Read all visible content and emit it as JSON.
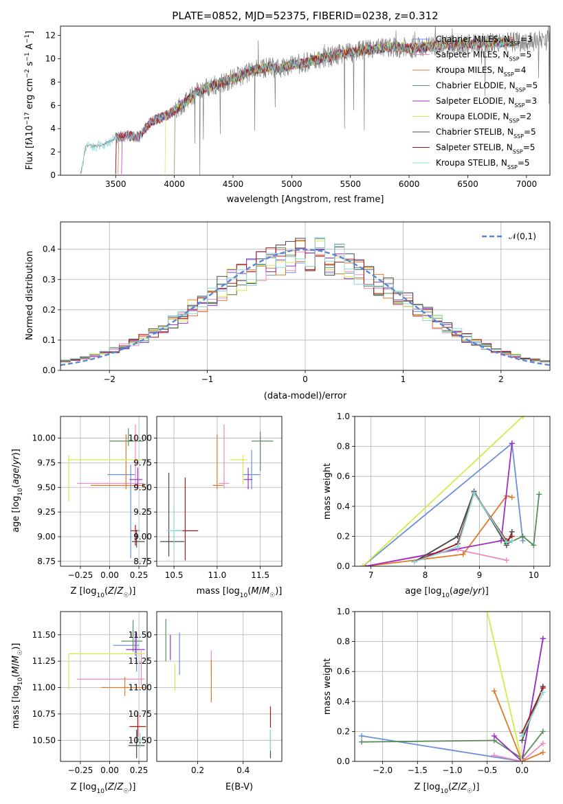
{
  "figure": {
    "title": "PLATE=0852, MJD=52375, FIBERID=0238, z=0.312"
  },
  "models": [
    {
      "name": "Chabrier MILES",
      "nssp": "3",
      "color": "#6b8fd6"
    },
    {
      "name": "Salpeter MILES",
      "nssp": "5",
      "color": "#ee89c1"
    },
    {
      "name": "Kroupa MILES",
      "nssp": "4",
      "color": "#e0782a"
    },
    {
      "name": "Chabrier ELODIE",
      "nssp": "5",
      "color": "#5b8c5e"
    },
    {
      "name": "Salpeter ELODIE",
      "nssp": "3",
      "color": "#9b30c0"
    },
    {
      "name": "Kroupa ELODIE",
      "nssp": "2",
      "color": "#d4ea4a"
    },
    {
      "name": "Chabrier STELIB",
      "nssp": "5",
      "color": "#4a4a4a"
    },
    {
      "name": "Salpeter STELIB",
      "nssp": "5",
      "color": "#a51818"
    },
    {
      "name": "Kroupa STELIB",
      "nssp": "5",
      "color": "#88d6d6"
    }
  ],
  "chart_data": [
    {
      "id": "spectrum",
      "type": "line",
      "xlabel": "wavelength [Angstrom, rest frame]",
      "ylabel": "Flux [f_λ 10^-17 erg cm^-2 s^-1 A^-1]",
      "xlim": [
        3030,
        7200
      ],
      "ylim": [
        0,
        12.8
      ],
      "xticks": [
        3500,
        4000,
        4500,
        5000,
        5500,
        6000,
        6500,
        7000
      ],
      "yticks": [
        0,
        2,
        4,
        6,
        8,
        10,
        12
      ],
      "grid": false,
      "legend_position": "right",
      "observed_color": "#7f7f7f",
      "observed_anchor_x": [
        3200,
        3250,
        3300,
        3400,
        3500,
        3600,
        3700,
        3800,
        3950,
        4000,
        4100,
        4200,
        4300,
        4400,
        4500,
        4600,
        4700,
        4800,
        4900,
        5000,
        5100,
        5200,
        5300,
        5400,
        5500,
        5600,
        5700,
        5800,
        5900,
        6000,
        6200,
        6400,
        6600,
        6800,
        7000,
        7200
      ],
      "observed_anchor_y": [
        0.05,
        2.6,
        2.5,
        2.6,
        3.2,
        3.4,
        3.3,
        4.6,
        5.2,
        5.6,
        6.3,
        7.2,
        7.6,
        7.9,
        8.3,
        8.7,
        9.1,
        9.3,
        9.2,
        9.5,
        9.6,
        9.9,
        10.1,
        10.4,
        10.5,
        10.7,
        10.8,
        11.0,
        11.0,
        10.9,
        11.1,
        11.2,
        11.3,
        11.4,
        11.5,
        11.6
      ]
    },
    {
      "id": "residuals",
      "type": "histogram",
      "xlabel": "(data-model)/error",
      "ylabel": "Normed distribution",
      "xlim": [
        -2.5,
        2.5
      ],
      "ylim": [
        0,
        0.49
      ],
      "xticks": [
        -2,
        -1,
        0,
        1,
        2
      ],
      "yticks": [
        0.0,
        0.1,
        0.2,
        0.3,
        0.4
      ],
      "grid": true,
      "reference_curve": {
        "label": "𝒩(0,1)",
        "mean": 0,
        "sigma": 1,
        "color": "#5a86d6"
      },
      "legend_position": "top-right",
      "bins": 50
    },
    {
      "id": "age_vs_Z",
      "type": "errorbar",
      "xlabel": "Z [log10(Z/Z☉)]",
      "ylabel": "age [log10(age/yr)]",
      "xlim": [
        -0.42,
        0.32
      ],
      "ylim": [
        8.7,
        10.22
      ],
      "xticks": [
        -0.25,
        0.0,
        0.25
      ],
      "yticks": [
        8.75,
        9.0,
        9.25,
        9.5,
        9.75,
        10.0
      ],
      "grid": true,
      "points": [
        {
          "model": 0,
          "x": 0.18,
          "xerr": [
            0.2,
            0.04
          ],
          "y": 9.63,
          "yerr": [
            0.85,
            0.1
          ]
        },
        {
          "model": 1,
          "x": 0.22,
          "xerr": [
            0.5,
            0.07
          ],
          "y": 9.54,
          "yerr": [
            0.05,
            0.6
          ]
        },
        {
          "model": 2,
          "x": 0.14,
          "xerr": [
            0.3,
            0.16
          ],
          "y": 9.52,
          "yerr": [
            0.04,
            0.52
          ]
        },
        {
          "model": 3,
          "x": 0.16,
          "xerr": [
            0.16,
            0.13
          ],
          "y": 9.97,
          "yerr": [
            0.05,
            0.13
          ]
        },
        {
          "model": 4,
          "x": 0.24,
          "xerr": [
            0.07,
            0.04
          ],
          "y": 9.58,
          "yerr": [
            0.07,
            0.12
          ]
        },
        {
          "model": 5,
          "x": -0.35,
          "xerr": [
            0.0,
            0.65
          ],
          "y": 9.78,
          "yerr": [
            0.42,
            0.05
          ]
        },
        {
          "model": 6,
          "x": 0.23,
          "xerr": [
            0.04,
            0.07
          ],
          "y": 8.95,
          "yerr": [
            0.06,
            0.12
          ]
        },
        {
          "model": 7,
          "x": 0.22,
          "xerr": [
            0.04,
            0.04
          ],
          "y": 9.06,
          "yerr": [
            0.15,
            0.06
          ]
        },
        {
          "model": 8,
          "x": 0.25,
          "xerr": [
            0.01,
            0.01
          ],
          "y": 9.06,
          "yerr": [
            0.02,
            0.02
          ]
        }
      ]
    },
    {
      "id": "age_vs_mass",
      "type": "errorbar",
      "xlabel": "mass [log10(M/M☉)]",
      "ylabel": "",
      "xlim": [
        10.3,
        11.75
      ],
      "ylim": [
        8.7,
        10.22
      ],
      "xticks": [
        10.5,
        11.0,
        11.5
      ],
      "yticks": [
        8.75,
        9.0,
        9.25,
        9.5,
        9.75,
        10.0
      ],
      "grid": true,
      "points": [
        {
          "model": 0,
          "x": 11.4,
          "xerr": [
            0.1,
            0.1
          ],
          "y": 9.63,
          "yerr": [
            0.15,
            0.25
          ]
        },
        {
          "model": 1,
          "x": 11.08,
          "xerr": [
            0.06,
            0.06
          ],
          "y": 9.54,
          "yerr": [
            0.05,
            0.6
          ]
        },
        {
          "model": 2,
          "x": 11.0,
          "xerr": [
            0.05,
            0.07
          ],
          "y": 9.52,
          "yerr": [
            0.04,
            0.52
          ]
        },
        {
          "model": 3,
          "x": 11.5,
          "xerr": [
            0.1,
            0.15
          ],
          "y": 9.97,
          "yerr": [
            0.3,
            0.1
          ]
        },
        {
          "model": 4,
          "x": 11.36,
          "xerr": [
            0.05,
            0.05
          ],
          "y": 9.58,
          "yerr": [
            0.1,
            0.12
          ]
        },
        {
          "model": 5,
          "x": 11.3,
          "xerr": [
            0.15,
            0.05
          ],
          "y": 9.78,
          "yerr": [
            0.25,
            0.05
          ]
        },
        {
          "model": 6,
          "x": 10.44,
          "xerr": [
            0.1,
            0.18
          ],
          "y": 8.95,
          "yerr": [
            0.15,
            0.7
          ]
        },
        {
          "model": 7,
          "x": 10.63,
          "xerr": [
            0.12,
            0.15
          ],
          "y": 9.06,
          "yerr": [
            0.3,
            0.54
          ]
        },
        {
          "model": 8,
          "x": 10.5,
          "xerr": [
            0.08,
            0.1
          ],
          "y": 9.06,
          "yerr": [
            0.2,
            0.25
          ]
        }
      ]
    },
    {
      "id": "mass_weight_vs_age",
      "type": "line",
      "xlabel": "age [log10(age/yr)]",
      "ylabel": "mass weight",
      "xlim": [
        6.7,
        10.3
      ],
      "ylim": [
        0.0,
        1.0
      ],
      "xticks": [
        7,
        8,
        9,
        10
      ],
      "yticks": [
        0.0,
        0.2,
        0.4,
        0.6,
        0.8,
        1.0
      ],
      "grid": true,
      "series": [
        {
          "model": 0,
          "x": [
            6.85,
            9.6,
            9.8
          ],
          "y": [
            0.0,
            0.82,
            0.17
          ]
        },
        {
          "model": 1,
          "x": [
            6.9,
            8.6,
            9.5
          ],
          "y": [
            0.0,
            0.11,
            0.04
          ]
        },
        {
          "model": 2,
          "x": [
            6.9,
            8.7,
            9.5,
            9.6
          ],
          "y": [
            0.0,
            0.08,
            0.47,
            0.46
          ]
        },
        {
          "model": 3,
          "x": [
            7.8,
            8.6,
            8.9,
            9.5,
            9.8,
            10.0,
            10.1
          ],
          "y": [
            0.03,
            0.2,
            0.49,
            0.15,
            0.2,
            0.14,
            0.48
          ]
        },
        {
          "model": 4,
          "x": [
            6.9,
            9.4,
            9.6
          ],
          "y": [
            0.0,
            0.17,
            0.82
          ]
        },
        {
          "model": 5,
          "x": [
            6.85,
            9.8
          ],
          "y": [
            0.0,
            1.0
          ]
        },
        {
          "model": 6,
          "x": [
            7.8,
            8.6,
            8.9,
            9.5,
            9.6
          ],
          "y": [
            0.03,
            0.2,
            0.5,
            0.14,
            0.23
          ]
        },
        {
          "model": 7,
          "x": [
            7.8,
            8.6,
            8.9,
            9.5,
            9.6
          ],
          "y": [
            0.03,
            0.15,
            0.49,
            0.17,
            0.2
          ]
        },
        {
          "model": 8,
          "x": [
            7.8,
            8.6,
            8.9,
            9.5,
            9.6
          ],
          "y": [
            0.03,
            0.13,
            0.49,
            0.16,
            0.17
          ]
        }
      ]
    },
    {
      "id": "mass_vs_Z",
      "type": "errorbar",
      "xlabel": "Z [log10(Z/Z☉)]",
      "ylabel": "mass [log10(M/M☉)]",
      "xlim": [
        -0.42,
        0.32
      ],
      "ylim": [
        10.3,
        11.72
      ],
      "xticks": [
        -0.25,
        0.0,
        0.25
      ],
      "yticks": [
        10.5,
        10.75,
        11.0,
        11.25,
        11.5
      ],
      "grid": true,
      "points": [
        {
          "model": 0,
          "x": 0.23,
          "xerr": [
            0.2,
            0.02
          ],
          "y": 11.4,
          "yerr": [
            0.25,
            0.12
          ]
        },
        {
          "model": 1,
          "x": 0.27,
          "xerr": [
            0.55,
            0.03
          ],
          "y": 11.08,
          "yerr": [
            0.06,
            0.27
          ]
        },
        {
          "model": 2,
          "x": 0.13,
          "xerr": [
            0.2,
            0.17
          ],
          "y": 11.0,
          "yerr": [
            0.08,
            0.1
          ]
        },
        {
          "model": 3,
          "x": 0.2,
          "xerr": [
            0.1,
            0.08
          ],
          "y": 11.44,
          "yerr": [
            0.1,
            0.2
          ]
        },
        {
          "model": 4,
          "x": 0.22,
          "xerr": [
            0.08,
            0.08
          ],
          "y": 11.36,
          "yerr": [
            0.06,
            0.16
          ]
        },
        {
          "model": 5,
          "x": -0.35,
          "xerr": [
            0.0,
            0.65
          ],
          "y": 11.32,
          "yerr": [
            0.34,
            0.0
          ]
        },
        {
          "model": 6,
          "x": 0.23,
          "xerr": [
            0.07,
            0.07
          ],
          "y": 10.45,
          "yerr": [
            0.12,
            0.15
          ]
        },
        {
          "model": 7,
          "x": 0.24,
          "xerr": [
            0.07,
            0.07
          ],
          "y": 10.63,
          "yerr": [
            0.1,
            0.14
          ]
        },
        {
          "model": 8,
          "x": 0.26,
          "xerr": [
            0.02,
            0.02
          ],
          "y": 10.51,
          "yerr": [
            0.08,
            0.06
          ]
        }
      ]
    },
    {
      "id": "mass_vs_EBV",
      "type": "errorbar",
      "xlabel": "E(B-V)",
      "ylabel": "",
      "xlim": [
        0.02,
        0.57
      ],
      "ylim": [
        10.3,
        11.72
      ],
      "xticks": [
        0.2,
        0.4
      ],
      "yticks": [
        10.5,
        10.75,
        11.0,
        11.25,
        11.5
      ],
      "grid": true,
      "points": [
        {
          "model": 0,
          "x": 0.12,
          "xerr": [
            0.0,
            0.0
          ],
          "y": 11.32,
          "yerr": [
            0.2,
            0.2
          ]
        },
        {
          "model": 1,
          "x": 0.26,
          "xerr": [
            0.0,
            0.0
          ],
          "y": 11.25,
          "yerr": [
            0.1,
            0.1
          ]
        },
        {
          "model": 2,
          "x": 0.26,
          "xerr": [
            0.0,
            0.0
          ],
          "y": 11.06,
          "yerr": [
            0.2,
            0.2
          ]
        },
        {
          "model": 3,
          "x": 0.06,
          "xerr": [
            0.0,
            0.0
          ],
          "y": 11.45,
          "yerr": [
            0.2,
            0.2
          ]
        },
        {
          "model": 4,
          "x": 0.08,
          "xerr": [
            0.0,
            0.0
          ],
          "y": 11.38,
          "yerr": [
            0.12,
            0.12
          ]
        },
        {
          "model": 5,
          "x": 0.1,
          "xerr": [
            0.0,
            0.0
          ],
          "y": 11.1,
          "yerr": [
            0.13,
            0.13
          ]
        },
        {
          "model": 6,
          "x": 0.52,
          "xerr": [
            0.0,
            0.0
          ],
          "y": 10.45,
          "yerr": [
            0.12,
            0.15
          ]
        },
        {
          "model": 7,
          "x": 0.52,
          "xerr": [
            0.0,
            0.0
          ],
          "y": 10.72,
          "yerr": [
            0.1,
            0.1
          ]
        },
        {
          "model": 8,
          "x": 0.52,
          "xerr": [
            0.0,
            0.0
          ],
          "y": 10.5,
          "yerr": [
            0.1,
            0.1
          ]
        }
      ]
    },
    {
      "id": "mass_weight_vs_Z",
      "type": "line",
      "xlabel": "Z [log10(Z/Z☉)]",
      "ylabel": "mass weight",
      "xlim": [
        -2.4,
        0.4
      ],
      "ylim": [
        0.0,
        1.0
      ],
      "xticks": [
        -2.0,
        -1.5,
        -1.0,
        -0.5,
        0.0
      ],
      "yticks": [
        0.0,
        0.2,
        0.4,
        0.6,
        0.8,
        1.0
      ],
      "grid": true,
      "series": [
        {
          "model": 0,
          "x": [
            -2.3,
            0.0,
            0.3
          ],
          "y": [
            0.17,
            0.0,
            0.82
          ]
        },
        {
          "model": 1,
          "x": [
            -0.4,
            0.0,
            0.3
          ],
          "y": [
            0.04,
            0.0,
            0.12
          ]
        },
        {
          "model": 2,
          "x": [
            -0.4,
            0.0,
            0.3
          ],
          "y": [
            0.47,
            0.0,
            0.06
          ]
        },
        {
          "model": 3,
          "x": [
            -2.3,
            -0.4,
            0.0,
            0.3
          ],
          "y": [
            0.13,
            0.14,
            0.02,
            0.2
          ]
        },
        {
          "model": 4,
          "x": [
            -0.4,
            0.0,
            0.3
          ],
          "y": [
            0.17,
            0.0,
            0.82
          ]
        },
        {
          "model": 5,
          "x": [
            -0.5,
            0.0
          ],
          "y": [
            1.0,
            0.0
          ]
        },
        {
          "model": 6,
          "x": [
            0.0,
            0.3
          ],
          "y": [
            0.14,
            0.5
          ]
        },
        {
          "model": 7,
          "x": [
            0.0,
            0.3
          ],
          "y": [
            0.19,
            0.49
          ]
        },
        {
          "model": 8,
          "x": [
            0.0,
            0.3
          ],
          "y": [
            0.17,
            0.46
          ]
        }
      ]
    }
  ]
}
